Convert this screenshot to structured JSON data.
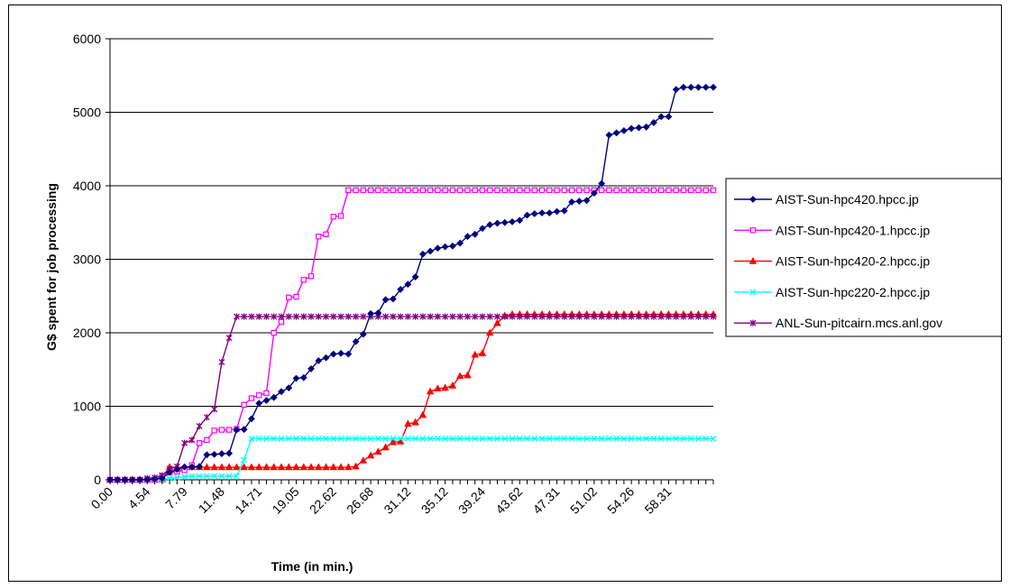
{
  "chart_data": {
    "type": "line",
    "title": "",
    "xlabel": "Time (in min.)",
    "ylabel": "G$ spent for job processing",
    "ylim": [
      0,
      6000
    ],
    "yticks": [
      0,
      1000,
      2000,
      3000,
      4000,
      5000,
      6000
    ],
    "xlim": [
      0,
      81
    ],
    "x_tick_labels": [
      "0.00",
      "4.54",
      "7.79",
      "11.48",
      "14.71",
      "19.05",
      "22.62",
      "26.68",
      "31.12",
      "35.12",
      "39.24",
      "43.62",
      "47.31",
      "51.02",
      "54.26",
      "58.31"
    ],
    "x_tick_positions": [
      0,
      5,
      10,
      15,
      20,
      25,
      30,
      35,
      40,
      45,
      50,
      55,
      60,
      65,
      70,
      75
    ],
    "grid": "horizontal",
    "legend": "right",
    "series": [
      {
        "name": "AIST-Sun-hpc420.hpcc.jp",
        "color": "#000080",
        "marker": "diamond",
        "x": [
          0,
          1,
          2,
          3,
          4,
          5,
          6,
          7,
          8,
          9,
          10,
          11,
          12,
          13,
          14,
          15,
          16,
          17,
          18,
          19,
          20,
          21,
          22,
          23,
          24,
          25,
          26,
          27,
          28,
          29,
          30,
          31,
          32,
          33,
          34,
          35,
          36,
          37,
          38,
          39,
          40,
          41,
          42,
          43,
          44,
          45,
          46,
          47,
          48,
          49,
          50,
          51,
          52,
          53,
          54,
          55,
          56,
          57,
          58,
          59,
          60,
          61,
          62,
          63,
          64,
          65,
          66,
          67,
          68,
          69,
          70,
          71,
          72,
          73,
          74,
          75,
          76,
          77,
          78,
          79,
          80,
          81
        ],
        "y": [
          0,
          0,
          0,
          0,
          0,
          0,
          10,
          20,
          100,
          140,
          175,
          175,
          180,
          340,
          345,
          355,
          360,
          680,
          685,
          830,
          1040,
          1080,
          1120,
          1200,
          1250,
          1380,
          1390,
          1510,
          1620,
          1660,
          1710,
          1720,
          1710,
          1880,
          1980,
          2260,
          2270,
          2450,
          2460,
          2590,
          2660,
          2760,
          3070,
          3110,
          3150,
          3170,
          3180,
          3220,
          3310,
          3340,
          3420,
          3470,
          3490,
          3500,
          3510,
          3530,
          3600,
          3620,
          3630,
          3630,
          3650,
          3660,
          3780,
          3790,
          3800,
          3900,
          4030,
          4690,
          4720,
          4750,
          4780,
          4790,
          4800,
          4860,
          4940,
          4940,
          5310,
          5340,
          5340,
          5340,
          5340,
          5340
        ]
      },
      {
        "name": "AIST-Sun-hpc420-1.hpcc.jp",
        "color": "#ff00ff",
        "marker": "square",
        "x": [
          0,
          1,
          2,
          3,
          4,
          5,
          6,
          7,
          8,
          9,
          10,
          11,
          12,
          13,
          14,
          15,
          16,
          17,
          18,
          19,
          20,
          21,
          22,
          23,
          24,
          25,
          26,
          27,
          28,
          29,
          30,
          31,
          32,
          33,
          34,
          35,
          36,
          37,
          38,
          39,
          40,
          41,
          42,
          43,
          44,
          45,
          46,
          47,
          48,
          49,
          50,
          51,
          52,
          53,
          54,
          55,
          56,
          57,
          58,
          59,
          60,
          61,
          62,
          63,
          64,
          65,
          66,
          67,
          68,
          69,
          70,
          71,
          72,
          73,
          74,
          75,
          76,
          77,
          78,
          79,
          80,
          81
        ],
        "y": [
          0,
          0,
          0,
          0,
          0,
          0,
          0,
          50,
          100,
          110,
          130,
          200,
          500,
          540,
          670,
          680,
          680,
          690,
          1020,
          1110,
          1150,
          1180,
          2000,
          2150,
          2480,
          2490,
          2720,
          2770,
          3310,
          3340,
          3580,
          3590,
          3940,
          3940,
          3940,
          3940,
          3940,
          3940,
          3940,
          3940,
          3940,
          3940,
          3940,
          3940,
          3940,
          3940,
          3940,
          3940,
          3940,
          3940,
          3940,
          3940,
          3940,
          3940,
          3940,
          3940,
          3940,
          3940,
          3940,
          3940,
          3940,
          3940,
          3940,
          3940,
          3940,
          3940,
          3940,
          3940,
          3940,
          3940,
          3940,
          3940,
          3940,
          3940,
          3940,
          3940,
          3940,
          3940,
          3940,
          3940,
          3940,
          3940
        ]
      },
      {
        "name": "AIST-Sun-hpc420-2.hpcc.jp",
        "color": "#ff0000",
        "marker": "triangle",
        "x": [
          0,
          1,
          2,
          3,
          4,
          5,
          6,
          7,
          8,
          9,
          10,
          11,
          12,
          13,
          14,
          15,
          16,
          17,
          18,
          19,
          20,
          21,
          22,
          23,
          24,
          25,
          26,
          27,
          28,
          29,
          30,
          31,
          32,
          33,
          34,
          35,
          36,
          37,
          38,
          39,
          40,
          41,
          42,
          43,
          44,
          45,
          46,
          47,
          48,
          49,
          50,
          51,
          52,
          53,
          54,
          55,
          56,
          57,
          58,
          59,
          60,
          61,
          62,
          63,
          64,
          65,
          66,
          67,
          68,
          69,
          70,
          71,
          72,
          73,
          74,
          75,
          76,
          77,
          78,
          79,
          80,
          81
        ],
        "y": [
          0,
          0,
          0,
          0,
          0,
          0,
          0,
          0,
          170,
          170,
          170,
          170,
          170,
          170,
          170,
          170,
          170,
          170,
          170,
          170,
          170,
          170,
          170,
          170,
          170,
          170,
          170,
          170,
          170,
          170,
          170,
          170,
          170,
          180,
          260,
          330,
          380,
          440,
          510,
          520,
          760,
          780,
          880,
          1200,
          1240,
          1250,
          1280,
          1410,
          1420,
          1700,
          1720,
          2000,
          2130,
          2230,
          2250,
          2250,
          2250,
          2250,
          2250,
          2250,
          2250,
          2250,
          2250,
          2250,
          2250,
          2250,
          2250,
          2250,
          2250,
          2250,
          2250,
          2250,
          2250,
          2250,
          2250,
          2250,
          2250,
          2250,
          2250,
          2250,
          2250,
          2250
        ]
      },
      {
        "name": "AIST-Sun-hpc220-2.hpcc.jp",
        "color": "#00ffff",
        "marker": "x",
        "x": [
          0,
          1,
          2,
          3,
          4,
          5,
          6,
          7,
          8,
          9,
          10,
          11,
          12,
          13,
          14,
          15,
          16,
          17,
          18,
          19,
          20,
          21,
          22,
          23,
          24,
          25,
          26,
          27,
          28,
          29,
          30,
          31,
          32,
          33,
          34,
          35,
          36,
          37,
          38,
          39,
          40,
          41,
          42,
          43,
          44,
          45,
          46,
          47,
          48,
          49,
          50,
          51,
          52,
          53,
          54,
          55,
          56,
          57,
          58,
          59,
          60,
          61,
          62,
          63,
          64,
          65,
          66,
          67,
          68,
          69,
          70,
          71,
          72,
          73,
          74,
          75,
          76,
          77,
          78,
          79,
          80,
          81
        ],
        "y": [
          0,
          0,
          0,
          0,
          0,
          0,
          0,
          0,
          20,
          30,
          40,
          50,
          50,
          50,
          50,
          50,
          50,
          50,
          270,
          560,
          560,
          560,
          560,
          560,
          560,
          560,
          560,
          560,
          560,
          560,
          560,
          560,
          560,
          560,
          560,
          560,
          560,
          560,
          560,
          560,
          560,
          560,
          560,
          560,
          560,
          560,
          560,
          560,
          560,
          560,
          560,
          560,
          560,
          560,
          560,
          560,
          560,
          560,
          560,
          560,
          560,
          560,
          560,
          560,
          560,
          560,
          560,
          560,
          560,
          560,
          560,
          560,
          560,
          560,
          560,
          560,
          560,
          560,
          560,
          560,
          560,
          560
        ]
      },
      {
        "name": "ANL-Sun-pitcairn.mcs.anl.gov",
        "color": "#800080",
        "marker": "star",
        "x": [
          0,
          1,
          2,
          3,
          4,
          5,
          6,
          7,
          8,
          9,
          10,
          11,
          12,
          13,
          14,
          15,
          16,
          17,
          18,
          19,
          20,
          21,
          22,
          23,
          24,
          25,
          26,
          27,
          28,
          29,
          30,
          31,
          32,
          33,
          34,
          35,
          36,
          37,
          38,
          39,
          40,
          41,
          42,
          43,
          44,
          45,
          46,
          47,
          48,
          49,
          50,
          51,
          52,
          53,
          54,
          55,
          56,
          57,
          58,
          59,
          60,
          61,
          62,
          63,
          64,
          65,
          66,
          67,
          68,
          69,
          70,
          71,
          72,
          73,
          74,
          75,
          76,
          77,
          78,
          79,
          80,
          81
        ],
        "y": [
          0,
          0,
          0,
          0,
          0,
          20,
          30,
          60,
          150,
          180,
          500,
          540,
          730,
          850,
          960,
          1600,
          1930,
          2220,
          2220,
          2220,
          2220,
          2220,
          2220,
          2220,
          2220,
          2220,
          2220,
          2220,
          2220,
          2220,
          2220,
          2220,
          2220,
          2220,
          2220,
          2220,
          2220,
          2220,
          2220,
          2220,
          2220,
          2220,
          2220,
          2220,
          2220,
          2220,
          2220,
          2220,
          2220,
          2220,
          2220,
          2220,
          2220,
          2220,
          2220,
          2220,
          2220,
          2220,
          2220,
          2220,
          2220,
          2220,
          2220,
          2220,
          2220,
          2220,
          2220,
          2220,
          2220,
          2220,
          2220,
          2220,
          2220,
          2220,
          2220,
          2220,
          2220,
          2220,
          2220,
          2220,
          2220,
          2220
        ]
      }
    ]
  }
}
